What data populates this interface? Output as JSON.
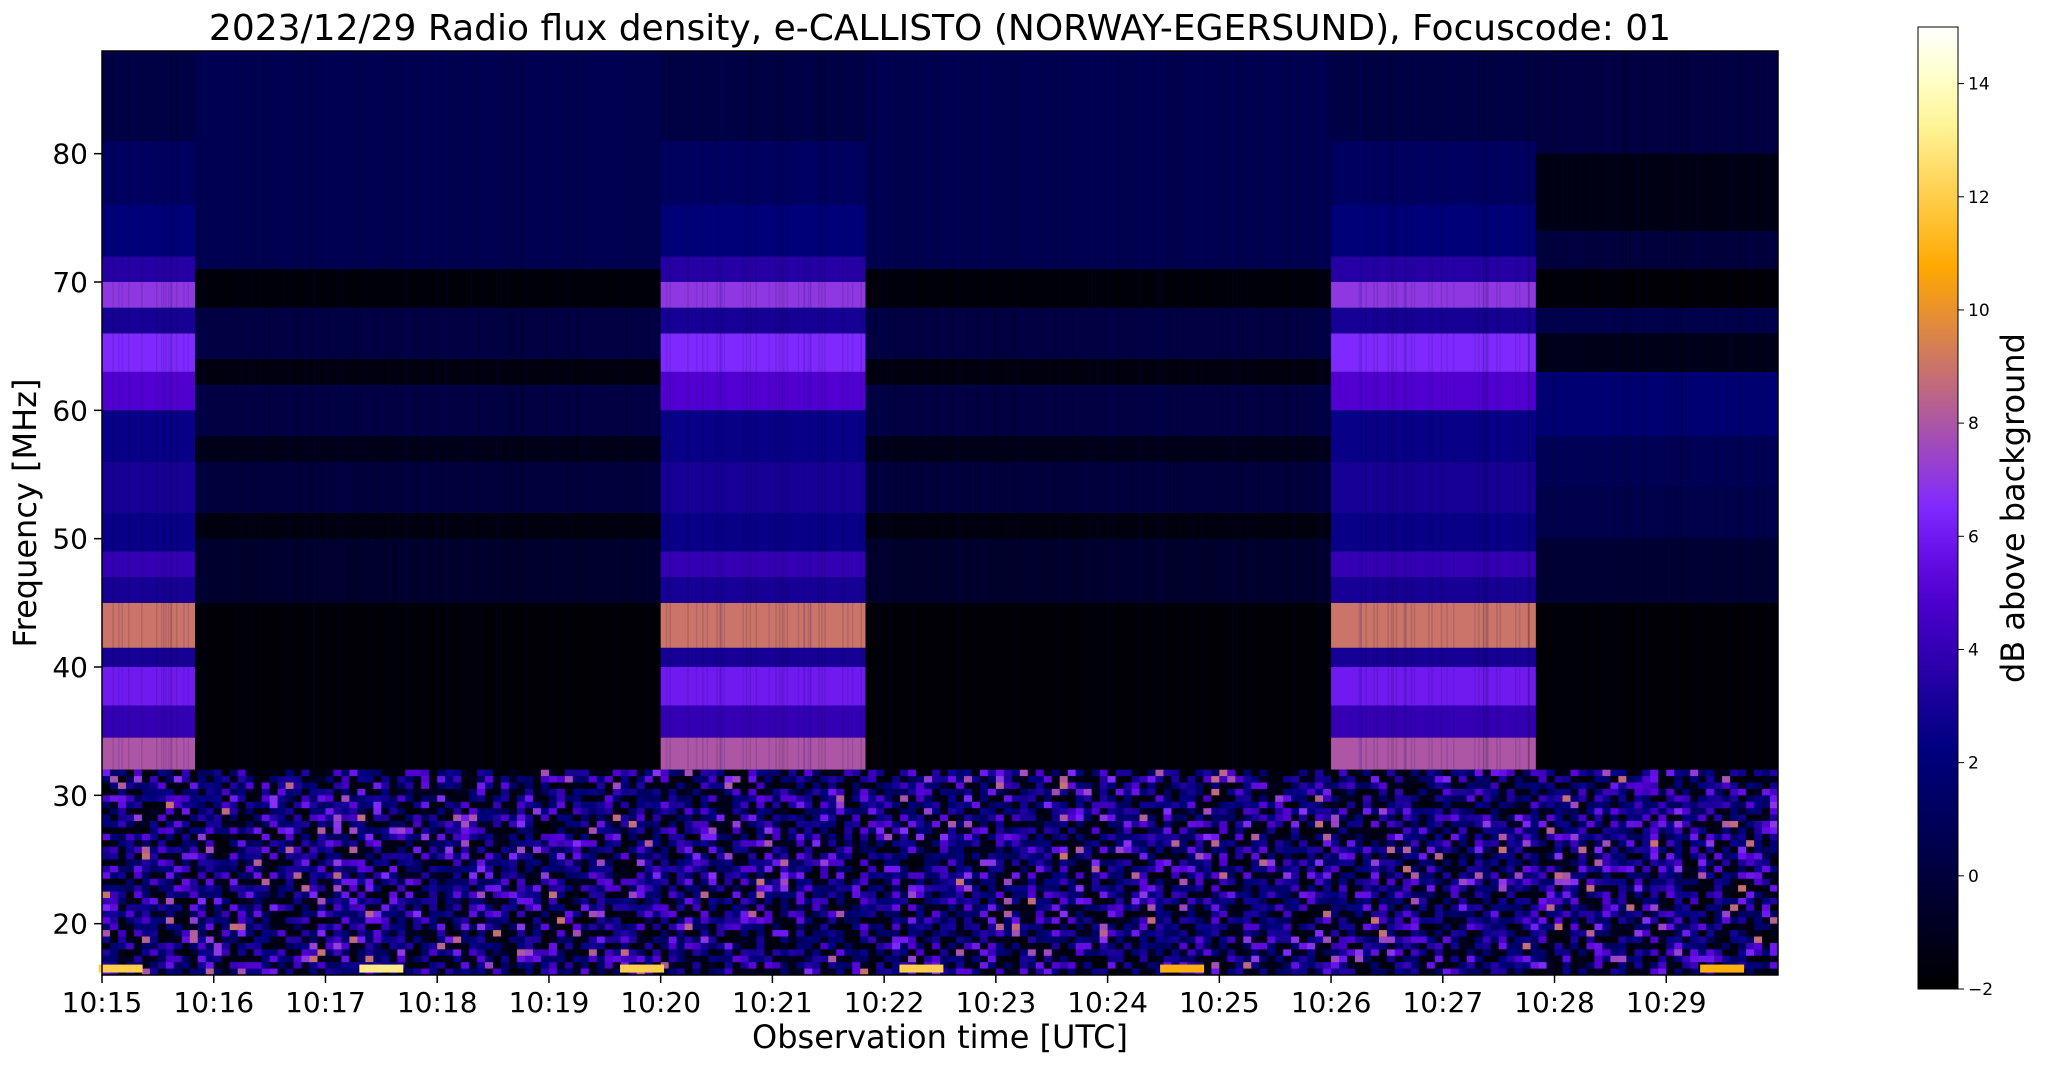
{
  "chart_data": {
    "type": "heatmap",
    "title": "2023/12/29  Radio flux density, e-CALLISTO (NORWAY-EGERSUND), Focuscode: 01",
    "xlabel": "Observation time [UTC]",
    "ylabel": "Frequency [MHz]",
    "colorbar_label": "dB above background",
    "colormap": "gnuplot2",
    "x_ticks": [
      "10:15",
      "10:16",
      "10:17",
      "10:18",
      "10:19",
      "10:20",
      "10:21",
      "10:22",
      "10:23",
      "10:24",
      "10:25",
      "10:26",
      "10:27",
      "10:28",
      "10:29"
    ],
    "xlim": [
      "10:15",
      "10:30"
    ],
    "y_ticks": [
      20,
      30,
      40,
      50,
      60,
      70,
      80
    ],
    "ylim": [
      16,
      88
    ],
    "colorbar_ticks": [
      -2,
      0,
      2,
      4,
      6,
      8,
      10,
      12,
      14
    ],
    "colorbar_range": [
      -2,
      15
    ],
    "segments": [
      {
        "start": "10:15:00",
        "end": "10:15:50",
        "type": "bright"
      },
      {
        "start": "10:15:50",
        "end": "10:20:00",
        "type": "dark"
      },
      {
        "start": "10:20:00",
        "end": "10:21:50",
        "type": "bright"
      },
      {
        "start": "10:21:50",
        "end": "10:26:00",
        "type": "dark"
      },
      {
        "start": "10:26:00",
        "end": "10:27:50",
        "type": "bright"
      },
      {
        "start": "10:27:50",
        "end": "10:30:00",
        "type": "dim"
      }
    ],
    "bright_bands": [
      {
        "from": 32,
        "to": 34.5,
        "value": 8
      },
      {
        "from": 34.5,
        "to": 37,
        "value": 4
      },
      {
        "from": 37,
        "to": 40,
        "value": 6
      },
      {
        "from": 40,
        "to": 41.5,
        "value": 3
      },
      {
        "from": 41.5,
        "to": 45,
        "value": 9
      },
      {
        "from": 45,
        "to": 47,
        "value": 3
      },
      {
        "from": 47,
        "to": 49,
        "value": 4
      },
      {
        "from": 49,
        "to": 52,
        "value": 2.5
      },
      {
        "from": 52,
        "to": 56,
        "value": 3
      },
      {
        "from": 56,
        "to": 60,
        "value": 2.5
      },
      {
        "from": 60,
        "to": 63,
        "value": 5
      },
      {
        "from": 63,
        "to": 66,
        "value": 6.5
      },
      {
        "from": 66,
        "to": 68,
        "value": 3
      },
      {
        "from": 68,
        "to": 70,
        "value": 7
      },
      {
        "from": 70,
        "to": 72,
        "value": 3.5
      },
      {
        "from": 72,
        "to": 76,
        "value": 2
      },
      {
        "from": 76,
        "to": 81,
        "value": 1.2
      },
      {
        "from": 81,
        "to": 88,
        "value": 0.3
      }
    ],
    "dark_bands": [
      {
        "from": 32,
        "to": 45,
        "value": -1.8
      },
      {
        "from": 45,
        "to": 50,
        "value": -0.5
      },
      {
        "from": 50,
        "to": 52,
        "value": -1.5
      },
      {
        "from": 52,
        "to": 56,
        "value": 0
      },
      {
        "from": 56,
        "to": 58,
        "value": -1.2
      },
      {
        "from": 58,
        "to": 62,
        "value": 0.2
      },
      {
        "from": 62,
        "to": 64,
        "value": -1.5
      },
      {
        "from": 64,
        "to": 68,
        "value": 0.2
      },
      {
        "from": 68,
        "to": 71,
        "value": -1.7
      },
      {
        "from": 71,
        "to": 88,
        "value": 0.7
      }
    ],
    "dim_bands": [
      {
        "from": 32,
        "to": 45,
        "value": -1.8
      },
      {
        "from": 45,
        "to": 50,
        "value": -0.3
      },
      {
        "from": 50,
        "to": 54,
        "value": 0.5
      },
      {
        "from": 54,
        "to": 58,
        "value": 0.8
      },
      {
        "from": 58,
        "to": 63,
        "value": 1.8
      },
      {
        "from": 63,
        "to": 66,
        "value": -1.2
      },
      {
        "from": 66,
        "to": 68,
        "value": 0.5
      },
      {
        "from": 68,
        "to": 71,
        "value": -1.8
      },
      {
        "from": 71,
        "to": 74,
        "value": 0
      },
      {
        "from": 74,
        "to": 80,
        "value": -1.3
      },
      {
        "from": 80,
        "to": 88,
        "value": 0.2
      }
    ],
    "low_band": {
      "from": 16,
      "to": 32,
      "value_range": [
        -2,
        10
      ]
    },
    "hot_spots": [
      {
        "time": "10:15:10",
        "freq": 16.5,
        "value": 12
      },
      {
        "time": "10:17:30",
        "freq": 16.5,
        "value": 13
      },
      {
        "time": "10:19:50",
        "freq": 16.5,
        "value": 12
      },
      {
        "time": "10:22:20",
        "freq": 16.5,
        "value": 12
      },
      {
        "time": "10:24:40",
        "freq": 16.5,
        "value": 11
      },
      {
        "time": "10:29:30",
        "freq": 16.5,
        "value": 11
      }
    ]
  }
}
